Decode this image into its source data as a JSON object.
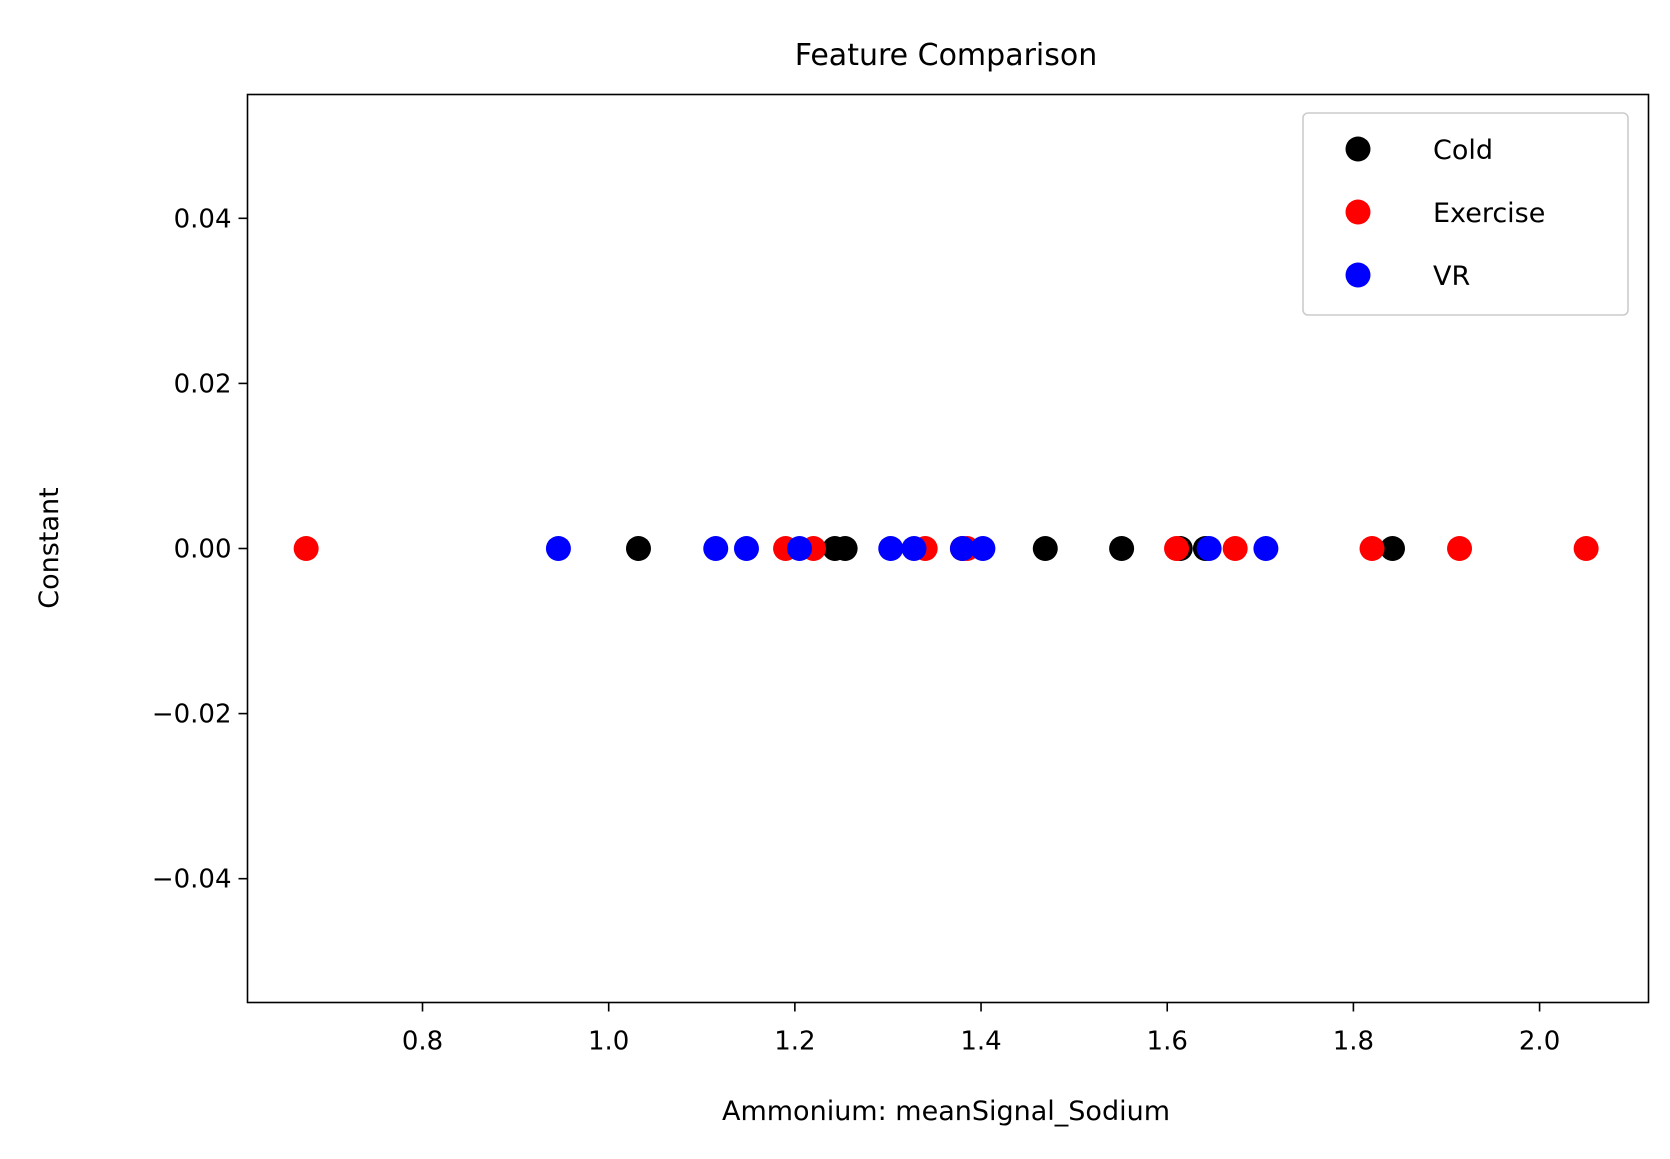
{
  "chart_data": {
    "type": "scatter",
    "title": "Feature Comparison",
    "xlabel": "Ammonium: meanSignal_Sodium",
    "ylabel": "Constant",
    "xlim": [
      0.612,
      2.117
    ],
    "ylim": [
      -0.055,
      0.055
    ],
    "x_ticks": [
      0.8,
      1.0,
      1.2,
      1.4,
      1.6,
      1.8,
      2.0
    ],
    "x_tick_labels": [
      "0.8",
      "1.0",
      "1.2",
      "1.4",
      "1.6",
      "1.8",
      "2.0"
    ],
    "y_ticks": [
      0.04,
      0.02,
      0.0,
      -0.02,
      -0.04
    ],
    "y_tick_labels": [
      "0.04",
      "0.02",
      "0.00",
      "−0.02",
      "−0.04"
    ],
    "grid": false,
    "legend_position": "top-right",
    "series": [
      {
        "name": "Cold",
        "color": "#000000",
        "x": [
          1.032,
          1.243,
          1.254,
          1.469,
          1.551,
          1.614,
          1.641,
          1.842
        ],
        "y": [
          0,
          0,
          0,
          0,
          0,
          0,
          0,
          0
        ]
      },
      {
        "name": "Exercise",
        "color": "#ff0000",
        "x": [
          0.675,
          1.19,
          1.22,
          1.34,
          1.38,
          1.385,
          1.61,
          1.673,
          1.82,
          1.914,
          2.05
        ],
        "y": [
          0,
          0,
          0,
          0,
          0,
          0,
          0,
          0,
          0,
          0,
          0
        ]
      },
      {
        "name": "VR",
        "color": "#0000ff",
        "x": [
          0.946,
          1.115,
          1.148,
          1.205,
          1.303,
          1.328,
          1.38,
          1.402,
          1.645,
          1.706
        ],
        "y": [
          0,
          0,
          0,
          0,
          0,
          0,
          0,
          0,
          0,
          0
        ]
      }
    ]
  }
}
